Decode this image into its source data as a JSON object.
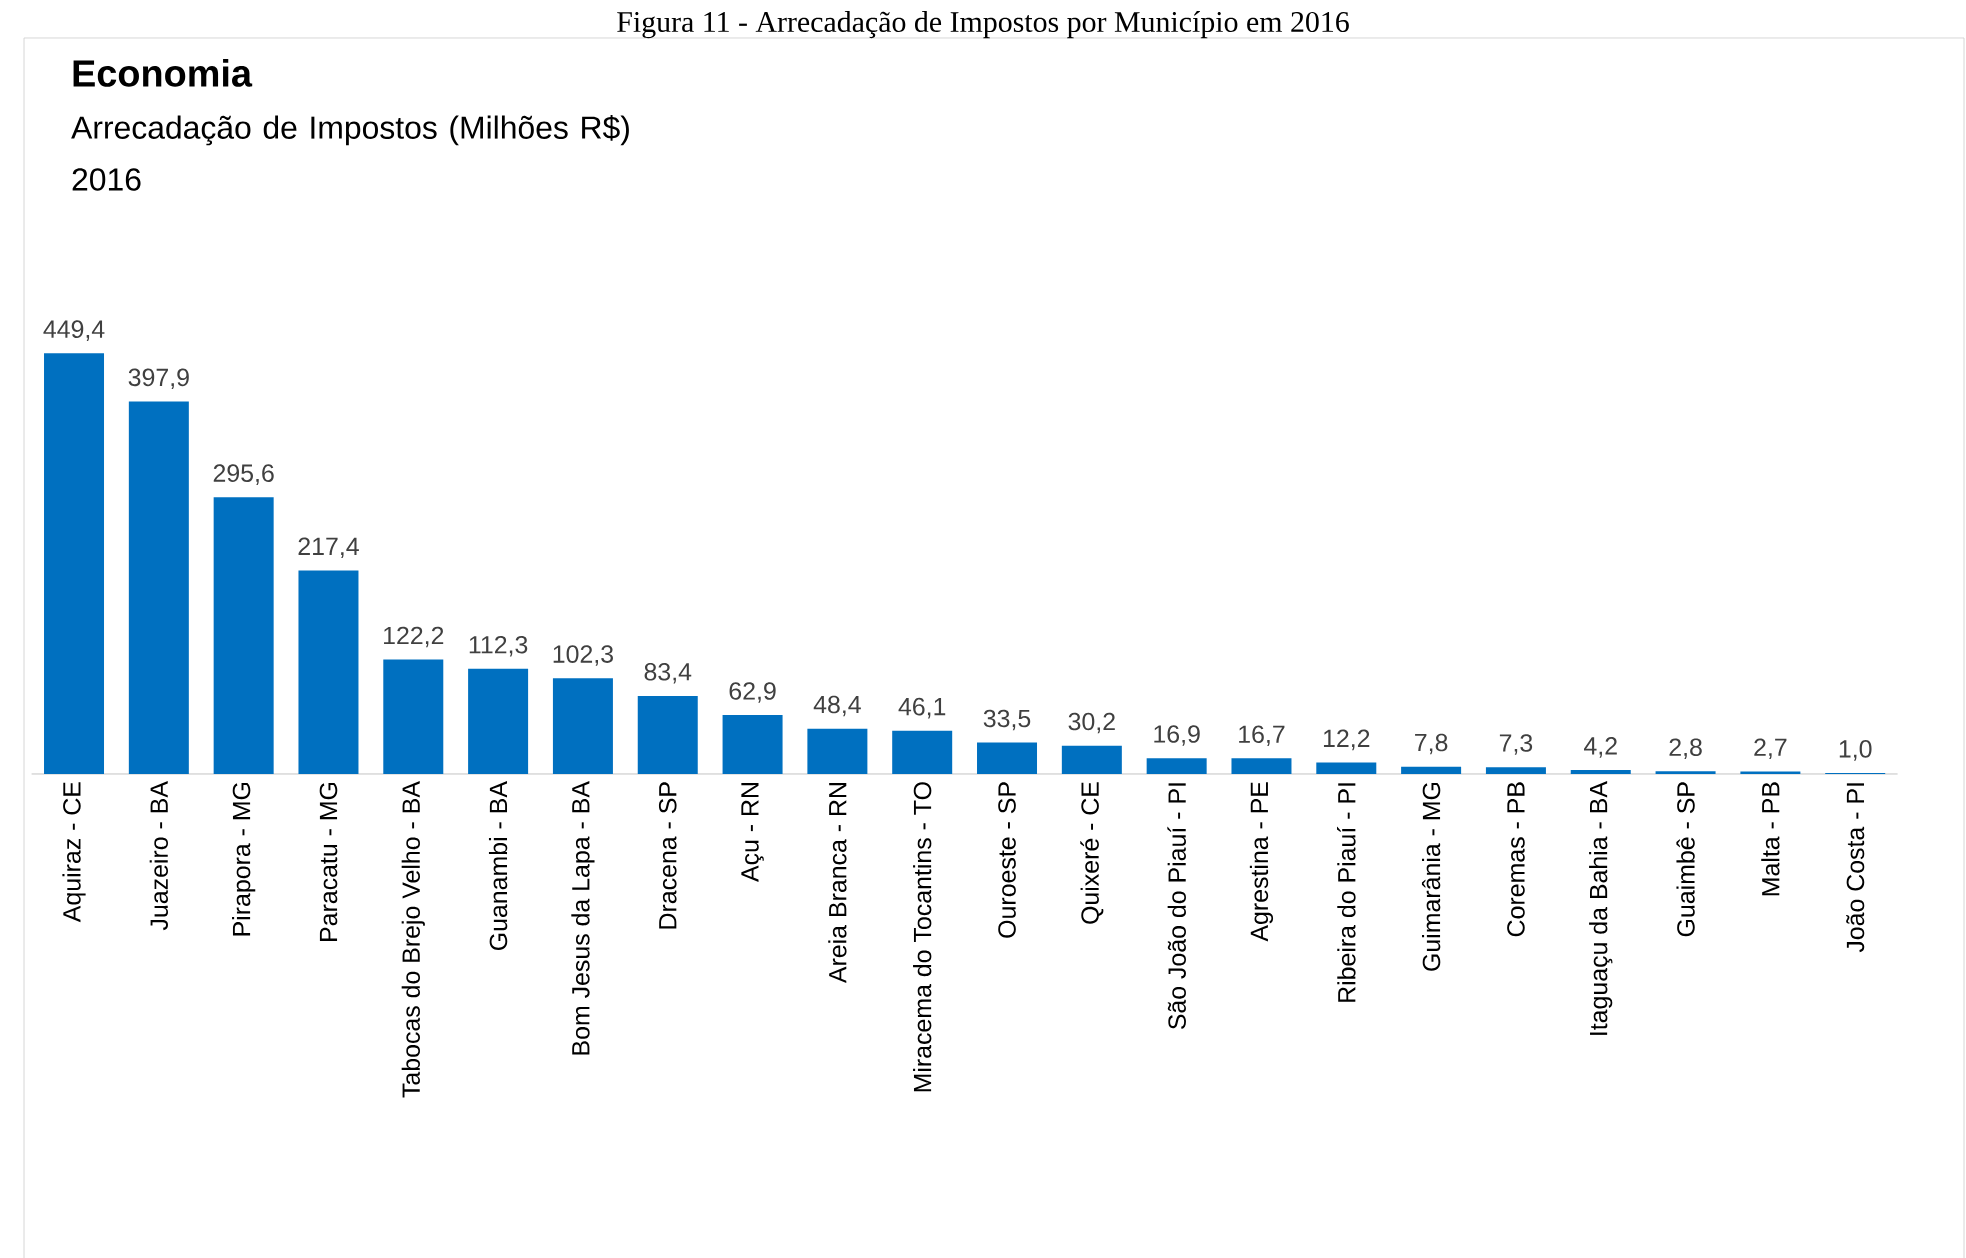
{
  "chart_data": {
    "type": "bar",
    "title": "Economia",
    "subtitle": "Arrecadação de Impostos (Milhões R$)\n2016",
    "annotations": [
      "Figura 11 - Arrecadação de Impostos por Município em 2016"
    ],
    "categories": [
      "Aquiraz - CE",
      "Juazeiro - BA",
      "Pirapora - MG",
      "Paracatu - MG",
      "Tabocas do Brejo Velho - BA",
      "Guanambi - BA",
      "Bom Jesus da Lapa - BA",
      "Dracena - SP",
      "Açu - RN",
      "Areia Branca - RN",
      "Miracema do Tocantins - TO",
      "Ouroeste - SP",
      "Quixeré - CE",
      "São João do Piauí - PI",
      "Agrestina - PE",
      "Ribeira do Piauí - PI",
      "Guimarânia - MG",
      "Coremas - PB",
      "Itaguaçu da Bahia - BA",
      "Guaimbê - SP",
      "Malta - PB",
      "João Costa - PI"
    ],
    "values": [
      449.4,
      397.9,
      295.6,
      217.4,
      122.2,
      112.3,
      102.3,
      83.4,
      62.9,
      48.4,
      46.1,
      33.5,
      30.2,
      16.9,
      16.7,
      12.2,
      7.8,
      7.3,
      4.2,
      2.8,
      2.7,
      1.0
    ],
    "value_labels": [
      "449,4",
      "397,9",
      "295,6",
      "217,4",
      "122,2",
      "112,3",
      "102,3",
      "83,4",
      "62,9",
      "48,4",
      "46,1",
      "33,5",
      "30,2",
      "16,9",
      "16,7",
      "12,2",
      "7,8",
      "7,3",
      "4,2",
      "2,8",
      "2,7",
      "1,0"
    ],
    "color": "#0070c0",
    "tick_labels": "x"
  }
}
